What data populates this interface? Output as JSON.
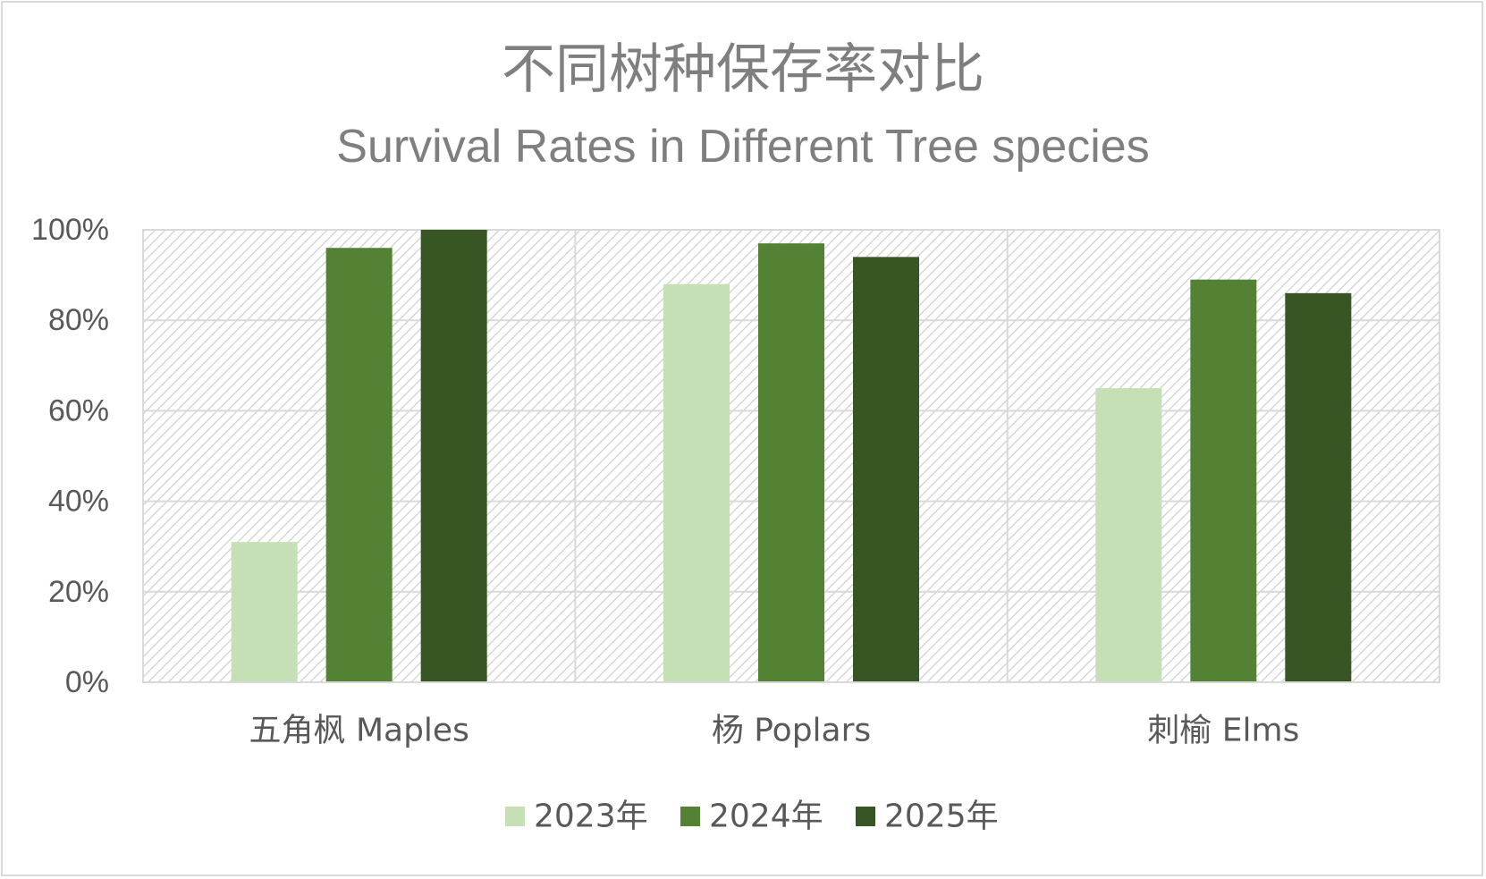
{
  "chart_data": {
    "type": "bar",
    "title": "不同树种保存率对比",
    "subtitle": "Survival Rates in Different Tree species",
    "xlabel": "",
    "ylabel": "",
    "categories": [
      "五角枫 Maples",
      "杨 Poplars",
      "刺榆 Elms"
    ],
    "series": [
      {
        "name": "2023年",
        "color": "#c5e0b4",
        "values": [
          31,
          88,
          65
        ]
      },
      {
        "name": "2024年",
        "color": "#548235",
        "values": [
          96,
          97,
          89
        ]
      },
      {
        "name": "2025年",
        "color": "#375623",
        "values": [
          100,
          94,
          86
        ]
      }
    ],
    "y_ticks": [
      "0%",
      "20%",
      "40%",
      "60%",
      "80%",
      "100%"
    ],
    "y_tick_values": [
      0,
      20,
      40,
      60,
      80,
      100
    ],
    "ylim": [
      0,
      100
    ],
    "grid": true,
    "plot_background": "diagonal hatch",
    "legend_position": "bottom"
  }
}
